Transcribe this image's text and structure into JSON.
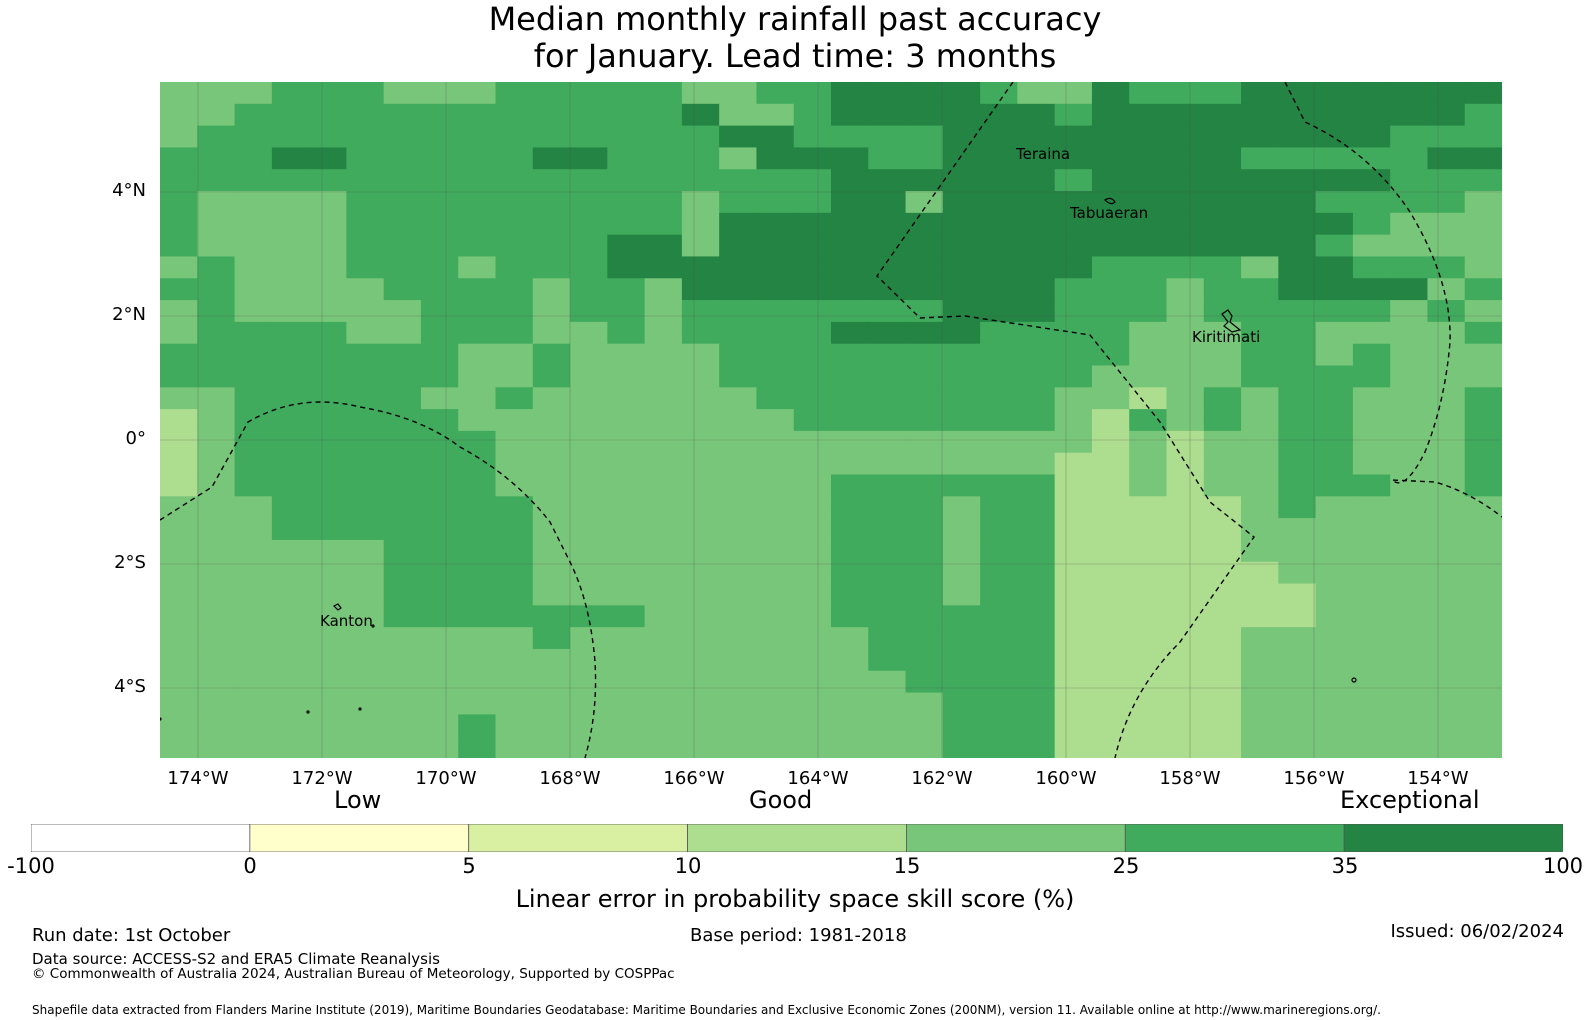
{
  "title": {
    "line1": "Median monthly rainfall past accuracy",
    "line2": "for January. Lead time: 3 months"
  },
  "map": {
    "lat_ticks": [
      "4°N",
      "2°N",
      "0°",
      "2°S",
      "4°S"
    ],
    "lon_ticks": [
      "174°W",
      "172°W",
      "170°W",
      "168°W",
      "166°W",
      "164°W",
      "162°W",
      "160°W",
      "158°W",
      "156°W",
      "154°W"
    ],
    "place_labels": [
      "Teraina",
      "Tabuaeran",
      "Kiritimati",
      "Kanton"
    ],
    "cell_palette": [
      "#ffffcc",
      "#d9f0a3",
      "#addd8e",
      "#78c679",
      "#41ab5d",
      "#238443"
    ],
    "grid": [
      "333444333444443344555543354445555555",
      "334444444444445334555555455555555554",
      "344444444444444554444555555555555444",
      "444554444455444355544555555554444455",
      "444444444444444444555555455555555444",
      "433334444444443444553555555555544443",
      "433334444444443555555555555555554333",
      "433334444444553555555555555555543333",
      "343334443444555555555555544443554443",
      "443333444434435555555555444344555534",
      "343333344434434444444555444344444343",
      "344443344433434444555544443334433334",
      "444444443343333444444444443334434333",
      "444444443343333444444444433334444333",
      "334444433433333344444444332343443334",
      "234444443333333334444444324343443334",
      "234444444333333333333333323233443334",
      "234444444333333333333333223233443334",
      "234444444333333333444444223233444334",
      "333444444433333333444344222223433333",
      "333444444433333333444344222223333333",
      "333333444433333333444344222223333333",
      "333333444433333333444344222222333333",
      "333333444433333333444344222222233333",
      "333333444444433333444444222222233333",
      "333333333343333333344444222223333333",
      "333333333333333333344444222223333333",
      "333333333333333333334444222223333333",
      "333333333333333333333444222223333333",
      "333333334333333333333444222223333333",
      "333333334333333333333444222223333333"
    ]
  },
  "colorbar": {
    "label_low": "Low",
    "label_good": "Good",
    "label_exceptional": "Exceptional",
    "ticks": [
      "-100",
      "0",
      "5",
      "10",
      "15",
      "25",
      "35",
      "100"
    ],
    "colors": [
      "#ffffff",
      "#ffffcc",
      "#d9f0a3",
      "#addd8e",
      "#78c679",
      "#41ab5d",
      "#238443"
    ],
    "title": "Linear error in probability space skill score (%)"
  },
  "footer": {
    "run_date": "Run date: 1st October",
    "base_period": "Base period: 1981-2018",
    "issued": "Issued: 06/02/2024",
    "data_source": "Data source: ACCESS-S2 and ERA5 Climate Reanalysis",
    "copyright": "© Commonwealth of Australia 2024, Australian Bureau of Meteorology, Supported by COSPPac",
    "shapefile": "Shapefile data extracted from Flanders Marine Institute (2019), Maritime Boundaries Geodatabase: Maritime Boundaries and Exclusive Economic Zones (200NM), version 11. Available online at http://www.marineregions.org/."
  }
}
